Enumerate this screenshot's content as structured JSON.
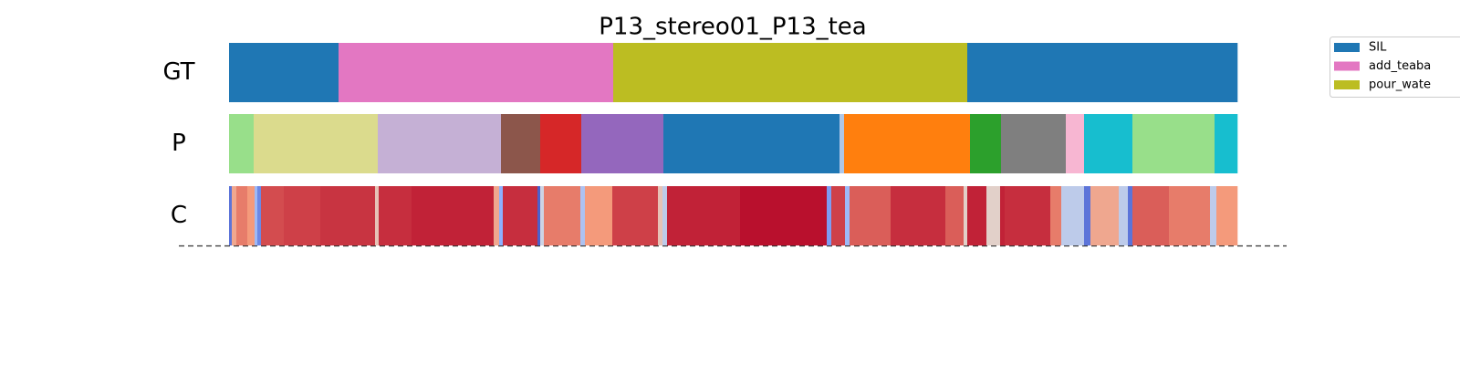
{
  "chart_data": {
    "type": "segmentation",
    "title": "P13_stereo01_P13_tea",
    "xlim": [
      0,
      1105
    ],
    "series": [
      {
        "name": "SIL",
        "color": "#1f77b4"
      },
      {
        "name": "add_teaba",
        "color": "#e377c2"
      },
      {
        "name": "pour_wate",
        "color": "#bcbd22"
      }
    ],
    "rows": [
      {
        "label": "GT",
        "edges": [
          0,
          120,
          421,
          809,
          1105
        ],
        "classes": [
          0,
          1,
          2,
          0
        ]
      },
      {
        "label": "P",
        "edges": [
          0,
          27,
          163,
          298,
          341,
          386,
          476,
          669,
          674,
          812,
          846,
          917,
          937,
          990,
          1080,
          1105
        ],
        "colors": [
          "#98df8a",
          "#dbdb8d",
          "#c5b0d5",
          "#8c564b",
          "#d62728",
          "#9467bd",
          "#1f77b4",
          "#aec7e8",
          "#ff7f0e",
          "#2ca02c",
          "#7f7f7f",
          "#f7b6d2",
          "#17becf",
          "#98df8a",
          "#17becf"
        ]
      },
      {
        "label": "C",
        "colormap": "coolwarm",
        "edges": [
          0,
          3,
          8,
          20,
          28,
          31,
          35,
          60,
          100,
          160,
          164,
          200,
          290,
          296,
          300,
          338,
          341,
          345,
          385,
          390,
          420,
          470,
          475,
          480,
          560,
          655,
          660,
          675,
          680,
          725,
          785,
          805,
          809,
          830,
          845,
          850,
          900,
          912,
          937,
          944,
          975,
          985,
          990,
          1030,
          1075,
          1082,
          1105
        ],
        "values": [
          0.1,
          0.7,
          0.8,
          0.75,
          0.3,
          0.15,
          0.88,
          0.9,
          0.92,
          0.6,
          0.93,
          0.95,
          0.7,
          0.25,
          0.93,
          0.05,
          0.45,
          0.8,
          0.35,
          0.75,
          0.9,
          0.6,
          0.4,
          0.95,
          0.98,
          0.2,
          0.9,
          0.3,
          0.85,
          0.93,
          0.85,
          0.55,
          0.95,
          0.55,
          0.95,
          0.93,
          0.8,
          0.4,
          0.1,
          0.7,
          0.4,
          0.1,
          0.85,
          0.8,
          0.4,
          0.75
        ]
      }
    ]
  }
}
